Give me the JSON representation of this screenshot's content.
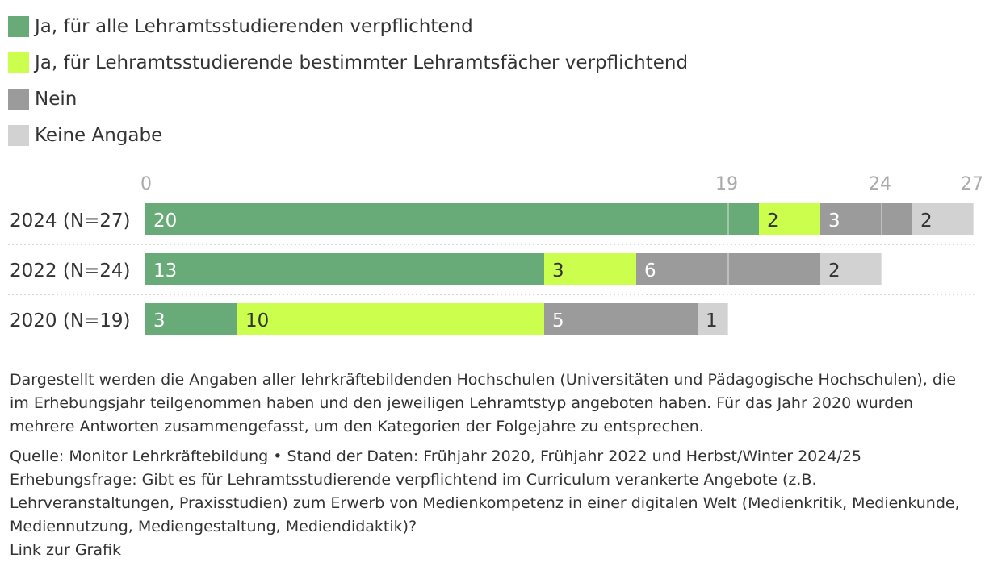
{
  "legend": [
    {
      "label": "Ja, für alle Lehramtsstudierenden verpflichtend",
      "color": "#69ab78"
    },
    {
      "label": "Ja, für Lehramtsstudierende bestimmter Lehramtsfächer verpflichtend",
      "color": "#ccff4d"
    },
    {
      "label": "Nein",
      "color": "#9b9b9b"
    },
    {
      "label": "Keine Angabe",
      "color": "#d2d2d2"
    }
  ],
  "chart_data": {
    "type": "bar",
    "orientation": "horizontal",
    "stacked": true,
    "categories": [
      "2024 (N=27)",
      "2022 (N=24)",
      "2020 (N=19)"
    ],
    "series": [
      {
        "name": "Ja, für alle Lehramtsstudierenden verpflichtend",
        "values": [
          20,
          13,
          3
        ],
        "color": "#69ab78"
      },
      {
        "name": "Ja, für Lehramtsstudierende bestimmter Lehramtsfächer verpflichtend",
        "values": [
          2,
          3,
          10
        ],
        "color": "#ccff4d"
      },
      {
        "name": "Nein",
        "values": [
          3,
          6,
          5
        ],
        "color": "#9b9b9b"
      },
      {
        "name": "Keine Angabe",
        "values": [
          2,
          2,
          1
        ],
        "color": "#d2d2d2"
      }
    ],
    "xticks": [
      0,
      19,
      24,
      27
    ],
    "xlim": [
      0,
      27
    ],
    "grid": true
  },
  "footnote": {
    "description": "Dargestellt werden die Angaben aller lehrkräftebildenden Hochschulen (Universitäten und Pädagogische Hochschulen), die im Erhebungsjahr teilgenommen haben und den jeweiligen Lehramtstyp angeboten haben. Für das Jahr 2020 wurden mehrere Antworten zusammengefasst, um den Kategorien der Folgejahre zu entsprechen.",
    "source": "Quelle: Monitor Lehrkräftebildung • Stand der Daten: Frühjahr 2020, Frühjahr 2022 und Herbst/Winter 2024/25",
    "question": "Erhebungsfrage: Gibt es für Lehramtsstudierende verpflichtend im Curriculum verankerte Angebote (z.B. Lehrveranstaltungen, Praxisstudien) zum Erwerb von Medienkompetenz in einer digitalen Welt (Medienkritik, Medienkunde, Mediennutzung, Mediengestaltung, Mediendidaktik)?",
    "link": "Link zur Grafik"
  }
}
